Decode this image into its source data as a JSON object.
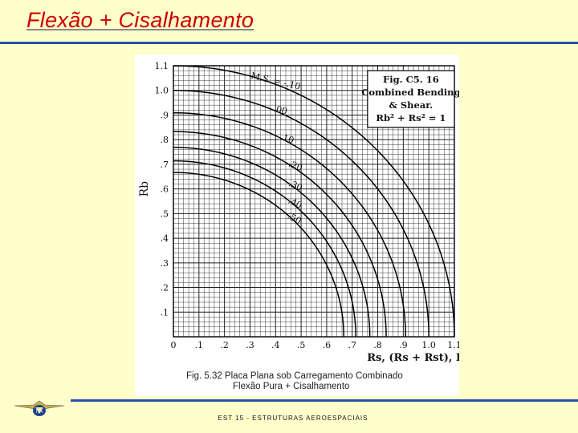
{
  "slide": {
    "title": "Flexão + Cisalhamento",
    "footer": "EST 15 - ESTRUTURAS AEROESPACIAIS"
  },
  "figure": {
    "caption_line1": "Fig. 5.32 Placa Plana sob Carregamento Combinado",
    "caption_line2": "Flexão Pura + Cisalhamento"
  },
  "chart_data": {
    "type": "line",
    "ylabel": "Rb",
    "xlabel": "Rs, (Rs + Rst), Rst",
    "xlim": [
      0,
      1.1
    ],
    "ylim": [
      0,
      1.1
    ],
    "grid": true,
    "x_ticks": [
      "0",
      ".1",
      ".2",
      ".3",
      ".4",
      ".5",
      ".6",
      ".7",
      ".8",
      ".9",
      "1.0",
      "1.1"
    ],
    "y_ticks": [
      ".1",
      ".2",
      ".3",
      ".4",
      ".5",
      ".6",
      ".7",
      ".8",
      ".9",
      "1.0",
      "1.1"
    ],
    "box": [
      "Fig. C5. 16",
      "Combined Bending",
      "& Shear.",
      "Rb² + Rs² = 1"
    ],
    "curve_labels": [
      "M.S. = -.10",
      ".00",
      ".10",
      ".20",
      ".30",
      ".40",
      ".50"
    ],
    "series": [
      {
        "name": "M.S. = -.10",
        "radius": 1.1,
        "ms": -0.1
      },
      {
        "name": ".00",
        "radius": 1.0,
        "ms": 0.0
      },
      {
        "name": ".10",
        "radius": 0.909,
        "ms": 0.1
      },
      {
        "name": ".20",
        "radius": 0.833,
        "ms": 0.2
      },
      {
        "name": ".30",
        "radius": 0.769,
        "ms": 0.3
      },
      {
        "name": ".40",
        "radius": 0.714,
        "ms": 0.4
      },
      {
        "name": ".50",
        "radius": 0.667,
        "ms": 0.5
      }
    ]
  }
}
